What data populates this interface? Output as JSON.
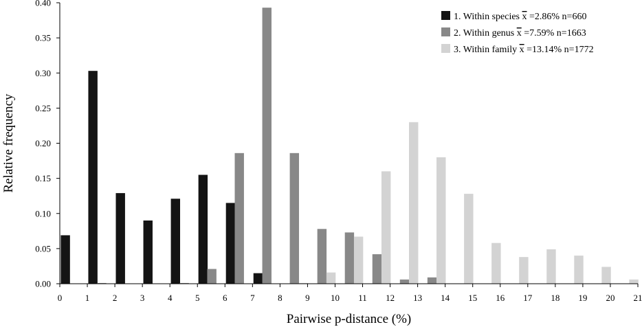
{
  "chart_data": {
    "type": "bar",
    "xlabel": "Pairwise p-distance (%)",
    "ylabel": "Relative frequency",
    "xlim": [
      0,
      21
    ],
    "ylim": [
      0,
      0.4
    ],
    "x_ticks": [
      0,
      1,
      2,
      3,
      4,
      5,
      6,
      7,
      8,
      9,
      10,
      11,
      12,
      13,
      14,
      15,
      16,
      17,
      18,
      19,
      20,
      21
    ],
    "y_ticks": [
      0.0,
      0.05,
      0.1,
      0.15,
      0.2,
      0.25,
      0.3,
      0.35,
      0.4
    ],
    "y_tick_labels": [
      "0.00",
      "0.05",
      "0.10",
      "0.15",
      "0.20",
      "0.25",
      "0.30",
      "0.35",
      "0.40"
    ],
    "legend_position": "top-right",
    "grid": false,
    "series": [
      {
        "name": "1. Within species x̄ =2.86% n=660",
        "legend_parts": [
          "1. Within species ",
          "x",
          " =2.86% n=660"
        ],
        "color": "#141414",
        "points": [
          {
            "x": 0,
            "y": 0.069
          },
          {
            "x": 1,
            "y": 0.303
          },
          {
            "x": 2,
            "y": 0.129
          },
          {
            "x": 3,
            "y": 0.09
          },
          {
            "x": 4,
            "y": 0.121
          },
          {
            "x": 5,
            "y": 0.155
          },
          {
            "x": 6,
            "y": 0.115
          },
          {
            "x": 7,
            "y": 0.015
          }
        ]
      },
      {
        "name": "2. Within genus x̄ =7.59% n=1663",
        "legend_parts": [
          "2. Within genus ",
          "x",
          " =7.59% n=1663"
        ],
        "color": "#888888",
        "points": [
          {
            "x": 1,
            "y": 0.001
          },
          {
            "x": 4,
            "y": 0.001
          },
          {
            "x": 5,
            "y": 0.021
          },
          {
            "x": 6,
            "y": 0.186
          },
          {
            "x": 7,
            "y": 0.393
          },
          {
            "x": 8,
            "y": 0.186
          },
          {
            "x": 9,
            "y": 0.078
          },
          {
            "x": 10,
            "y": 0.073
          },
          {
            "x": 11,
            "y": 0.042
          },
          {
            "x": 12,
            "y": 0.006
          },
          {
            "x": 13,
            "y": 0.009
          }
        ]
      },
      {
        "name": "3. Within family x̄ =13.14% n=1772",
        "legend_parts": [
          "3. Within family ",
          "x",
          " =13.14% n=1772"
        ],
        "color": "#d3d3d3",
        "points": [
          {
            "x": 8,
            "y": 0.001
          },
          {
            "x": 9,
            "y": 0.016
          },
          {
            "x": 10,
            "y": 0.067
          },
          {
            "x": 11,
            "y": 0.16
          },
          {
            "x": 12,
            "y": 0.23
          },
          {
            "x": 13,
            "y": 0.18
          },
          {
            "x": 14,
            "y": 0.128
          },
          {
            "x": 15,
            "y": 0.058
          },
          {
            "x": 16,
            "y": 0.038
          },
          {
            "x": 17,
            "y": 0.049
          },
          {
            "x": 18,
            "y": 0.04
          },
          {
            "x": 19,
            "y": 0.024
          },
          {
            "x": 20,
            "y": 0.006
          }
        ]
      }
    ]
  }
}
